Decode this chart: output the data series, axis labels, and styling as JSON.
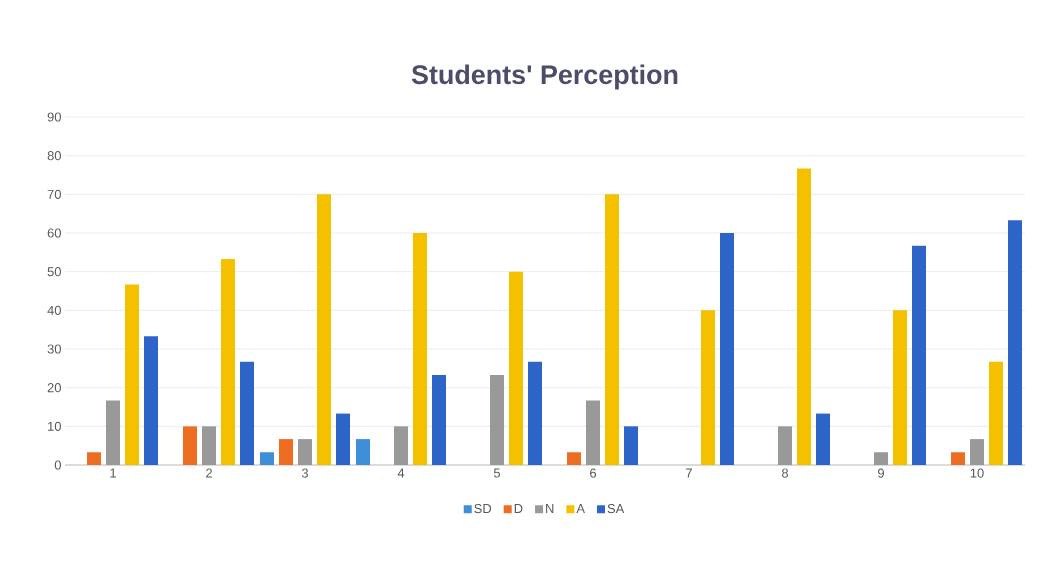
{
  "chart_data": {
    "type": "bar",
    "title": "Students' Perception",
    "categories": [
      "1",
      "2",
      "3",
      "4",
      "5",
      "6",
      "7",
      "8",
      "9",
      "10"
    ],
    "series": [
      {
        "name": "SD",
        "color": "#3f8fd8",
        "values": [
          0,
          0,
          3.3,
          6.7,
          0,
          0,
          0,
          0,
          0,
          0
        ]
      },
      {
        "name": "D",
        "color": "#ed6d23",
        "values": [
          3.3,
          10,
          6.7,
          0,
          0,
          3.3,
          0,
          0,
          0,
          3.3
        ]
      },
      {
        "name": "N",
        "color": "#999999",
        "values": [
          16.7,
          10,
          6.7,
          10,
          23.3,
          16.7,
          0,
          10,
          3.3,
          6.7
        ]
      },
      {
        "name": "A",
        "color": "#f5c000",
        "values": [
          46.7,
          53.3,
          70,
          60,
          50,
          70,
          40,
          76.7,
          40,
          26.7
        ]
      },
      {
        "name": "SA",
        "color": "#2e63c8",
        "values": [
          33.3,
          26.7,
          13.3,
          23.3,
          26.7,
          10,
          60,
          13.3,
          56.7,
          63.3
        ]
      }
    ],
    "ylim": [
      0,
      90
    ],
    "yticks": [
      0,
      10,
      20,
      30,
      40,
      50,
      60,
      70,
      80,
      90
    ],
    "grid": "y",
    "legend": "bottom"
  }
}
